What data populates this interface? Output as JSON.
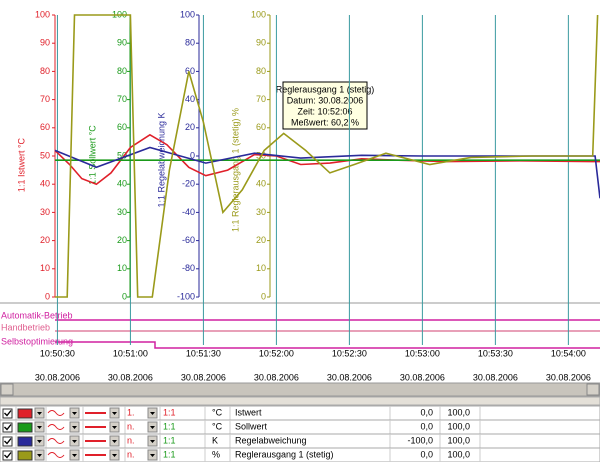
{
  "chart_data": {
    "type": "line",
    "axes": [
      {
        "title": "1:1 Istwert °C",
        "color": "#e0202a",
        "ylim": [
          0,
          100
        ],
        "yticks": [
          0,
          10,
          20,
          30,
          40,
          50,
          60,
          70,
          80,
          90,
          100
        ]
      },
      {
        "title": "1:1 Sollwert °C",
        "color": "#1a9a1a",
        "ylim": [
          0,
          100
        ],
        "yticks": [
          0,
          10,
          20,
          30,
          40,
          50,
          60,
          70,
          80,
          90,
          100
        ]
      },
      {
        "title": "1:1 Regelabweichung K",
        "color": "#2a2a9a",
        "ylim": [
          -100,
          100
        ],
        "yticks": [
          -100,
          -80,
          -60,
          -40,
          -20,
          0,
          20,
          40,
          60,
          80,
          100
        ]
      },
      {
        "title": "1:1 Reglerausgang 1 (stetig) %",
        "color": "#9a9a1a",
        "ylim": [
          0,
          100
        ],
        "yticks": [
          0,
          10,
          20,
          30,
          40,
          50,
          60,
          70,
          80,
          90,
          100
        ]
      }
    ],
    "xlim": [
      "10:50:29",
      "10:54:13"
    ],
    "xticks": [
      "10:50:30",
      "10:51:00",
      "10:51:30",
      "10:52:00",
      "10:52:30",
      "10:53:00",
      "10:53:30",
      "10:54:00"
    ],
    "xtick_dates": [
      "30.08.2006",
      "30.08.2006",
      "30.08.2006",
      "30.08.2006",
      "30.08.2006",
      "30.08.2006",
      "30.08.2006",
      "30.08.2006"
    ],
    "series": [
      {
        "name": "Istwert",
        "color": "#e0202a",
        "axis": 0,
        "x": [
          "10:50:29",
          "10:50:35",
          "10:50:40",
          "10:50:46",
          "10:50:52",
          "10:51:00",
          "10:51:08",
          "10:51:15",
          "10:51:24",
          "10:51:31",
          "10:51:40",
          "10:51:51",
          "10:52:00",
          "10:52:10",
          "10:52:22",
          "10:52:35",
          "10:52:50",
          "10:53:10",
          "10:53:40",
          "10:54:10",
          "10:54:13"
        ],
        "values": [
          52,
          47,
          42,
          40,
          44,
          53,
          57.5,
          54,
          46,
          43,
          45,
          50.5,
          50,
          47,
          47.5,
          49,
          48.5,
          48,
          48.3,
          48,
          48
        ]
      },
      {
        "name": "Sollwert",
        "color": "#1a9a1a",
        "axis": 1,
        "x": [
          "10:50:29",
          "10:54:13"
        ],
        "values": [
          48.5,
          48.5
        ]
      },
      {
        "name": "Regelabweichung",
        "color": "#2a2a9a",
        "axis": 2,
        "x": [
          "10:50:29",
          "10:50:46",
          "10:51:08",
          "10:51:31",
          "10:51:51",
          "10:52:10",
          "10:52:35",
          "10:53:00",
          "10:54:11",
          "10:54:13"
        ],
        "values": [
          4,
          -8,
          6,
          -5,
          2,
          -1.5,
          0.5,
          0,
          0,
          -30
        ]
      },
      {
        "name": "Reglerausgang 1 (stetig)",
        "color": "#9a9a1a",
        "axis": 3,
        "x": [
          "10:50:29",
          "10:50:34",
          "10:50:37",
          "10:51:00",
          "10:51:03",
          "10:51:09",
          "10:51:16",
          "10:51:24",
          "10:51:30",
          "10:51:38",
          "10:51:46",
          "10:51:55",
          "10:52:03",
          "10:52:12",
          "10:52:22",
          "10:52:32",
          "10:52:45",
          "10:53:03",
          "10:53:20",
          "10:53:45",
          "10:54:10",
          "10:54:12"
        ],
        "values": [
          0,
          0,
          100,
          100,
          0,
          0,
          45,
          80,
          62,
          30,
          38,
          52,
          58,
          52,
          44,
          47,
          51,
          47,
          49.5,
          50,
          50,
          100
        ]
      }
    ]
  },
  "tooltip": {
    "lines": [
      "Reglerausgang 1 (stetig)",
      "Datum: 30.08.2006",
      "Zeit: 10:52:06",
      "Meßwert: 60,2 %"
    ]
  },
  "status_lanes": [
    "Automatik-Betrieb",
    "Handbetrieb",
    "Selbstoptimierung"
  ],
  "table": {
    "rows": [
      {
        "mode": "1.",
        "factor": "1:1",
        "unit": "°C",
        "min": "0,0",
        "max": "100,0"
      },
      {
        "mode": "n.",
        "factor": "1:1",
        "unit": "°C",
        "min": "0,0",
        "max": "100,0"
      },
      {
        "mode": "n.",
        "factor": "1:1",
        "unit": "K",
        "min": "-100,0",
        "max": "100,0"
      },
      {
        "mode": "n.",
        "factor": "1:1",
        "unit": "%",
        "min": "0,0",
        "max": "100,0"
      }
    ]
  }
}
